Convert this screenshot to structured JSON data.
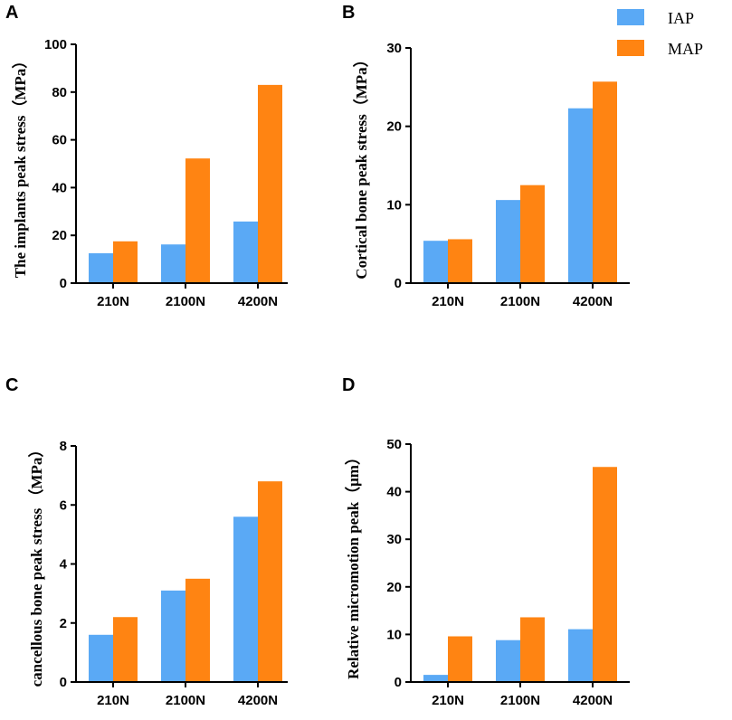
{
  "colors": {
    "IAP": "#5AA9F5",
    "MAP": "#FF8412",
    "axis": "#000000"
  },
  "legend": [
    {
      "name": "IAP",
      "label": "IAP",
      "color": "#5AA9F5"
    },
    {
      "name": "MAP",
      "label": "MAP",
      "color": "#FF8412"
    }
  ],
  "chart_data": [
    {
      "panel": "A",
      "type": "bar",
      "categories": [
        "210N",
        "2100N",
        "4200N"
      ],
      "series": [
        {
          "name": "IAP",
          "values": [
            12.5,
            16.2,
            25.8
          ]
        },
        {
          "name": "MAP",
          "values": [
            17.5,
            52.2,
            83.0
          ]
        }
      ],
      "ylabel": "The implants peak stress（MPa）",
      "ylim": [
        0,
        100
      ],
      "yticks": [
        0,
        20,
        40,
        60,
        80,
        100
      ]
    },
    {
      "panel": "B",
      "type": "bar",
      "categories": [
        "210N",
        "2100N",
        "4200N"
      ],
      "series": [
        {
          "name": "IAP",
          "values": [
            5.4,
            10.6,
            22.3
          ]
        },
        {
          "name": "MAP",
          "values": [
            5.6,
            12.5,
            25.7
          ]
        }
      ],
      "ylabel": "Cortical bone peak stress（MPa）",
      "ylim": [
        0,
        30
      ],
      "yticks": [
        0,
        10,
        20,
        30
      ]
    },
    {
      "panel": "C",
      "type": "bar",
      "categories": [
        "210N",
        "2100N",
        "4200N"
      ],
      "series": [
        {
          "name": "IAP",
          "values": [
            1.6,
            3.1,
            5.6
          ]
        },
        {
          "name": "MAP",
          "values": [
            2.2,
            3.5,
            6.8
          ]
        }
      ],
      "ylabel": "cancellous bone peak stress （MPa）",
      "ylim": [
        0,
        8
      ],
      "yticks": [
        0,
        2,
        4,
        6,
        8
      ]
    },
    {
      "panel": "D",
      "type": "bar",
      "categories": [
        "210N",
        "2100N",
        "4200N"
      ],
      "series": [
        {
          "name": "IAP",
          "values": [
            1.5,
            8.8,
            11.1
          ]
        },
        {
          "name": "MAP",
          "values": [
            9.6,
            13.6,
            45.2
          ]
        }
      ],
      "ylabel": "Relative micromotion peak（μm）",
      "ylim": [
        0,
        50
      ],
      "yticks": [
        0,
        10,
        20,
        30,
        40,
        50
      ]
    }
  ]
}
